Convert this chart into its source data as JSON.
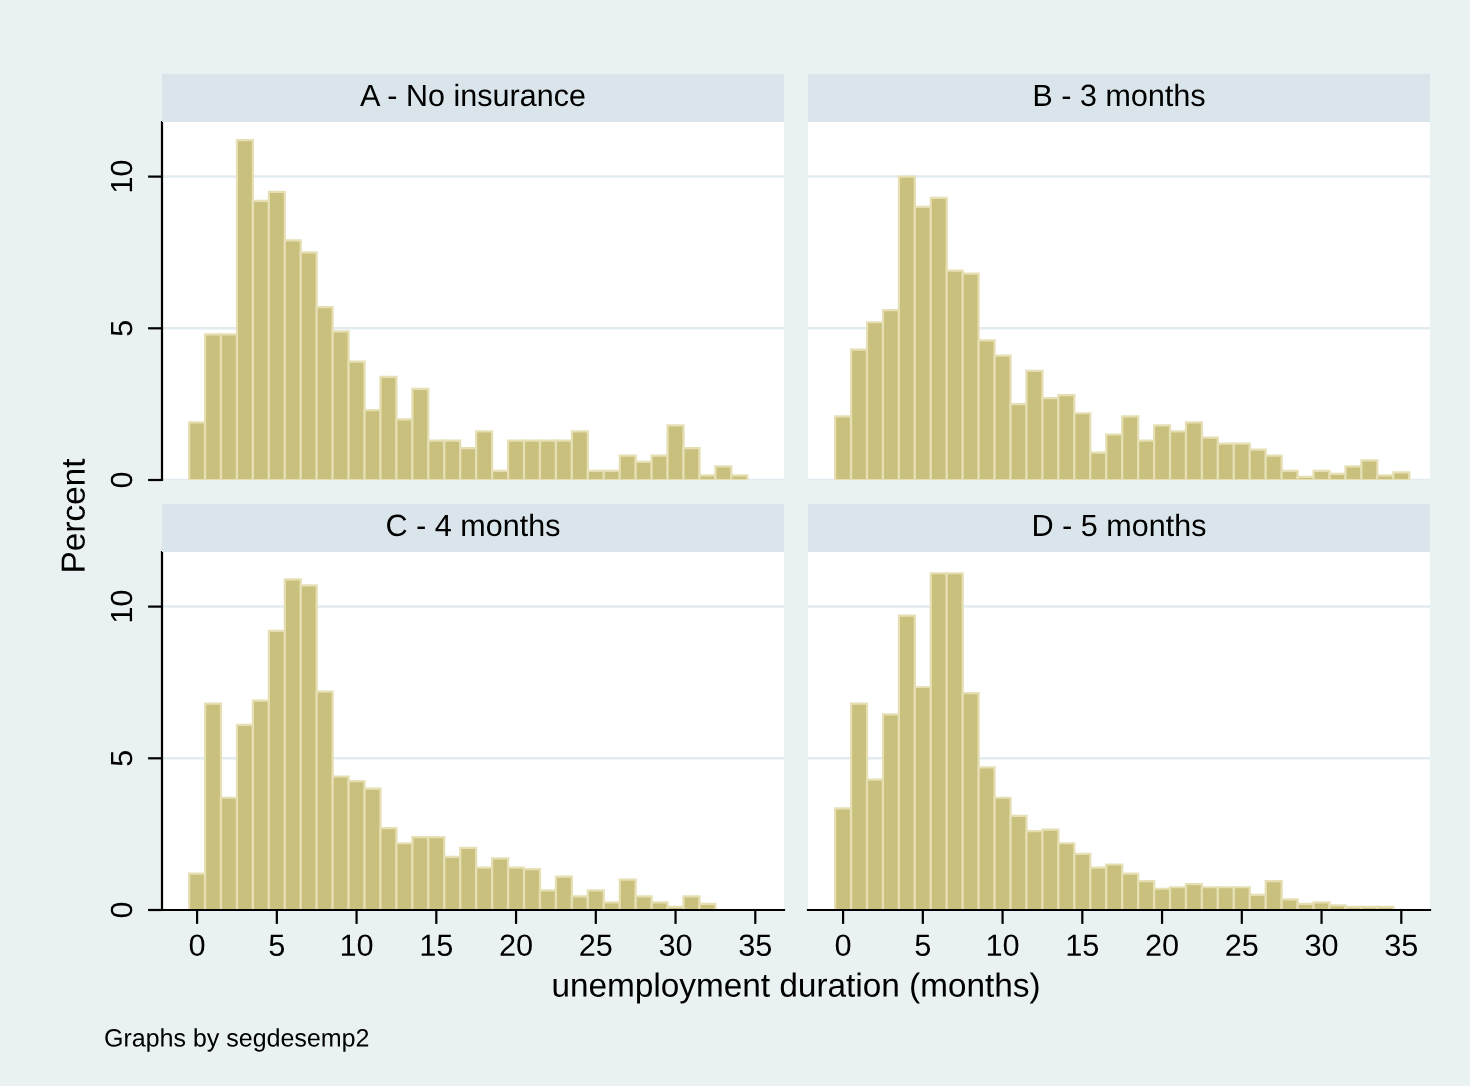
{
  "chart_data": [
    {
      "type": "histogram",
      "title": "A - No insurance",
      "ylabel": "Percent",
      "color": "#c9c07e",
      "bins": [
        -0.5,
        0.5,
        1.5,
        2.5,
        3.5,
        4.5,
        5.5,
        6.5,
        7.5,
        8.5,
        9.5,
        10.5,
        11.5,
        12.5,
        13.5,
        14.5,
        15.5,
        16.5,
        17.5,
        18.5,
        19.5,
        20.5,
        21.5,
        22.5,
        23.5,
        24.5,
        25.5,
        26.5,
        27.5,
        28.5,
        29.5,
        30.5,
        31.5,
        32.5,
        33.5,
        34.5
      ],
      "values": [
        1.9,
        4.8,
        4.8,
        11.2,
        9.2,
        9.5,
        7.9,
        7.5,
        5.7,
        4.9,
        3.9,
        2.3,
        3.4,
        2.0,
        3.0,
        1.3,
        1.3,
        1.05,
        1.6,
        0.3,
        1.3,
        1.3,
        1.3,
        1.3,
        1.6,
        0.3,
        0.3,
        0.8,
        0.6,
        0.8,
        1.8,
        1.05,
        0.15,
        0.45,
        0.15
      ],
      "xlim": [
        -2.2,
        36.8
      ],
      "ylim": [
        0,
        11.8
      ],
      "yticks": [
        0,
        5,
        10
      ],
      "grid": "y",
      "tick_labels": "y"
    },
    {
      "type": "histogram",
      "title": "B - 3 months",
      "color": "#c9c07e",
      "bins": [
        -0.5,
        0.5,
        1.5,
        2.5,
        3.5,
        4.5,
        5.5,
        6.5,
        7.5,
        8.5,
        9.5,
        10.5,
        11.5,
        12.5,
        13.5,
        14.5,
        15.5,
        16.5,
        17.5,
        18.5,
        19.5,
        20.5,
        21.5,
        22.5,
        23.5,
        24.5,
        25.5,
        26.5,
        27.5,
        28.5,
        29.5,
        30.5,
        31.5,
        32.5,
        33.5,
        34.5,
        35.5
      ],
      "values": [
        2.1,
        4.3,
        5.2,
        5.6,
        10.0,
        9.0,
        9.3,
        6.9,
        6.8,
        4.6,
        4.1,
        2.5,
        3.6,
        2.7,
        2.8,
        2.2,
        0.9,
        1.5,
        2.1,
        1.3,
        1.8,
        1.6,
        1.9,
        1.4,
        1.2,
        1.2,
        1.0,
        0.8,
        0.3,
        0.1,
        0.3,
        0.2,
        0.45,
        0.65,
        0.15,
        0.25
      ],
      "xlim": [
        -2.2,
        36.8
      ],
      "ylim": [
        0,
        11.8
      ],
      "yticks": [
        0,
        5,
        10
      ],
      "grid": "y",
      "tick_labels": false
    },
    {
      "type": "histogram",
      "title": "C - 4 months",
      "xlabel": "unemployment duration (months)",
      "color": "#c9c07e",
      "annotations": [
        "Graphs by segdesemp2"
      ],
      "bins": [
        -0.5,
        0.5,
        1.5,
        2.5,
        3.5,
        4.5,
        5.5,
        6.5,
        7.5,
        8.5,
        9.5,
        10.5,
        11.5,
        12.5,
        13.5,
        14.5,
        15.5,
        16.5,
        17.5,
        18.5,
        19.5,
        20.5,
        21.5,
        22.5,
        23.5,
        24.5,
        25.5,
        26.5,
        27.5,
        28.5,
        29.5,
        30.5,
        31.5,
        32.5
      ],
      "values": [
        1.2,
        6.8,
        3.7,
        6.1,
        6.9,
        9.2,
        10.9,
        10.7,
        7.2,
        4.4,
        4.25,
        4.0,
        2.7,
        2.2,
        2.4,
        2.4,
        1.75,
        2.05,
        1.4,
        1.7,
        1.4,
        1.35,
        0.65,
        1.1,
        0.45,
        0.65,
        0.25,
        1.0,
        0.45,
        0.25,
        0.1,
        0.45,
        0.2
      ],
      "xlim": [
        -2.2,
        36.8
      ],
      "ylim": [
        0,
        11.8
      ],
      "xticks": [
        0,
        5,
        10,
        15,
        20,
        25,
        30,
        35
      ],
      "yticks": [
        0,
        5,
        10
      ],
      "grid": "y"
    },
    {
      "type": "histogram",
      "title": "D - 5 months",
      "color": "#c9c07e",
      "bins": [
        -0.5,
        0.5,
        1.5,
        2.5,
        3.5,
        4.5,
        5.5,
        6.5,
        7.5,
        8.5,
        9.5,
        10.5,
        11.5,
        12.5,
        13.5,
        14.5,
        15.5,
        16.5,
        17.5,
        18.5,
        19.5,
        20.5,
        21.5,
        22.5,
        23.5,
        24.5,
        25.5,
        26.5,
        27.5,
        28.5,
        29.5,
        30.5,
        31.5,
        32.5,
        33.5,
        34.5
      ],
      "values": [
        3.35,
        6.8,
        4.3,
        6.45,
        9.7,
        7.35,
        11.1,
        11.1,
        7.15,
        4.7,
        3.7,
        3.1,
        2.6,
        2.65,
        2.2,
        1.85,
        1.4,
        1.5,
        1.2,
        0.95,
        0.7,
        0.75,
        0.85,
        0.75,
        0.75,
        0.75,
        0.5,
        0.95,
        0.35,
        0.2,
        0.25,
        0.15,
        0.1,
        0.1,
        0.1
      ],
      "xlim": [
        -2.2,
        36.8
      ],
      "ylim": [
        0,
        11.8
      ],
      "xticks": [
        0,
        5,
        10,
        15,
        20,
        25,
        30,
        35
      ],
      "yticks": [
        0,
        5,
        10
      ],
      "grid": "y",
      "tick_labels": "x"
    }
  ]
}
